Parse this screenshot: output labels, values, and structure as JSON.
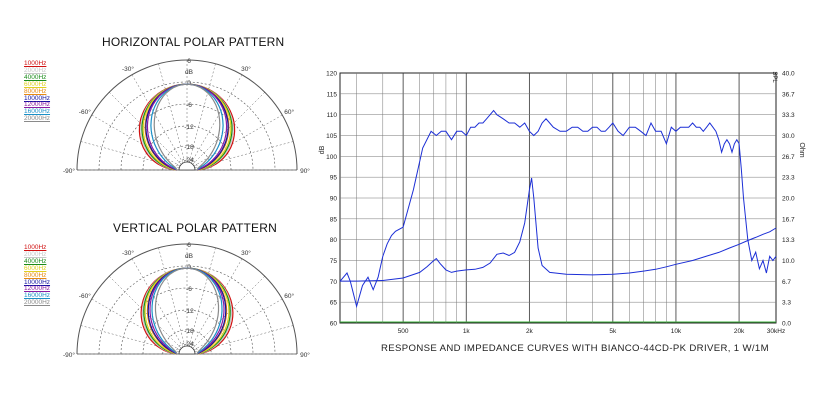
{
  "colors": {
    "1000Hz": "#d01010",
    "2000Hz": "#c8c8c8",
    "4000Hz": "#1a8c1a",
    "6000Hz": "#e0d020",
    "8000Hz": "#e88a10",
    "10000Hz": "#1010a0",
    "12000Hz": "#8a1aa0",
    "16000Hz": "#1a90c8",
    "20000Hz": "#8a8a8a",
    "spl": "#1c2fd6",
    "impedance": "#1c2fd6",
    "grid": "#444444",
    "marker": "#3cb43c"
  },
  "polar_horizontal": {
    "title": "HORIZONTAL POLAR PATTERN",
    "unit": "dB",
    "ring_labels": [
      "6",
      "0",
      "-6",
      "-12",
      "-18",
      "-24"
    ],
    "angle_labels": [
      "-30°",
      "30°",
      "-60°",
      "60°",
      "-90°",
      "90°"
    ],
    "legend": [
      "1000Hz",
      "2000Hz",
      "4000Hz",
      "6000Hz",
      "8000Hz",
      "10000Hz",
      "12000Hz",
      "16000Hz",
      "20000Hz"
    ]
  },
  "polar_vertical": {
    "title": "VERTICAL POLAR PATTERN",
    "unit": "dB",
    "ring_labels": [
      "6",
      "0",
      "-6",
      "-12",
      "-18",
      "-24"
    ],
    "angle_labels": [
      "-30°",
      "30°",
      "-60°",
      "60°",
      "-90°",
      "90°"
    ],
    "legend": [
      "1000Hz",
      "2000Hz",
      "4000Hz",
      "6000Hz",
      "8000Hz",
      "10000Hz",
      "12000Hz",
      "16000Hz",
      "20000Hz"
    ]
  },
  "caption": "RESPONSE AND IMPEDANCE CURVES WITH BIANCO-44CD-PK DRIVER, 1 W/1M",
  "chart_data": [
    {
      "type": "line",
      "xscale": "log",
      "xlim": [
        250,
        30000
      ],
      "ylim": [
        60,
        120
      ],
      "y2lim": [
        0,
        40
      ],
      "grid": true,
      "ylabel": "dB",
      "y2label": "Ohm",
      "y2_corner_label": "SPL",
      "x_ticks": [
        {
          "v": 500,
          "t": "500"
        },
        {
          "v": 1000,
          "t": "1k"
        },
        {
          "v": 2000,
          "t": "2k"
        },
        {
          "v": 5000,
          "t": "5k"
        },
        {
          "v": 10000,
          "t": "10k"
        },
        {
          "v": 20000,
          "t": "20k"
        },
        {
          "v": 30000,
          "t": "30kHz"
        }
      ],
      "y_ticks": [
        "60",
        "65",
        "70",
        "75",
        "80",
        "85",
        "90",
        "95",
        "100",
        "105",
        "110",
        "115",
        "120"
      ],
      "y2_ticks": [
        "0.0",
        "3.3",
        "6.7",
        "10.0",
        "13.3",
        "16.7",
        "20.0",
        "23.3",
        "26.7",
        "30.0",
        "33.3",
        "36.7",
        "40.0"
      ],
      "series": [
        {
          "axis": "left",
          "x": [
            250,
            270,
            280,
            300,
            320,
            340,
            360,
            380,
            400,
            420,
            440,
            460,
            500,
            560,
            620,
            680,
            720,
            760,
            800,
            850,
            900,
            950,
            1000,
            1050,
            1100,
            1150,
            1200,
            1250,
            1300,
            1350,
            1400,
            1500,
            1600,
            1700,
            1800,
            1900,
            2000,
            2100,
            2200,
            2300,
            2400,
            2500,
            2600,
            2800,
            3000,
            3200,
            3400,
            3600,
            3800,
            4000,
            4200,
            4400,
            4600,
            4800,
            5000,
            5300,
            5600,
            6000,
            6400,
            6800,
            7200,
            7600,
            8000,
            8500,
            9000,
            9500,
            10000,
            10500,
            11000,
            11500,
            12000,
            12500,
            13000,
            13500,
            14000,
            14500,
            15000,
            15500,
            16000,
            16500,
            17000,
            17500,
            18000,
            18500,
            19000,
            19500,
            20000,
            20500,
            21000,
            22000,
            23000,
            24000,
            25000,
            26000,
            27000,
            28000,
            29000,
            30000
          ],
          "y": [
            70,
            72,
            70,
            64,
            69,
            71,
            68,
            71,
            76,
            79,
            81,
            82,
            83,
            92,
            102,
            106,
            105,
            106,
            106,
            104,
            106,
            106,
            105,
            107,
            107,
            108,
            108,
            109,
            110,
            111,
            110,
            109,
            108,
            108,
            107,
            108,
            106,
            105,
            106,
            108,
            109,
            108,
            107,
            106,
            106,
            107,
            107,
            106,
            106,
            107,
            107,
            106,
            106,
            107,
            108,
            106,
            105,
            107,
            107,
            106,
            105,
            108,
            106,
            106,
            103,
            107,
            106,
            107,
            107,
            107,
            108,
            107,
            107,
            106,
            107,
            108,
            107,
            106,
            104,
            101,
            103,
            104,
            103,
            101,
            103,
            104,
            103,
            97,
            90,
            80,
            75,
            77,
            73,
            75,
            72,
            76,
            75,
            76
          ]
        },
        {
          "axis": "right",
          "x": [
            250,
            300,
            400,
            500,
            600,
            650,
            700,
            720,
            750,
            800,
            850,
            900,
            1000,
            1100,
            1200,
            1300,
            1400,
            1500,
            1600,
            1700,
            1800,
            1900,
            2000,
            2050,
            2100,
            2200,
            2300,
            2500,
            3000,
            4000,
            5000,
            6000,
            7000,
            8000,
            9000,
            10000,
            12000,
            14000,
            16000,
            18000,
            20000,
            22000,
            24000,
            26000,
            28000,
            30000
          ],
          "y": [
            6.7,
            6.7,
            6.8,
            7.2,
            8.1,
            9.0,
            10.0,
            10.3,
            9.5,
            8.5,
            8.1,
            8.3,
            8.5,
            8.6,
            8.9,
            9.6,
            11.0,
            11.2,
            10.8,
            11.3,
            13.0,
            16.0,
            21.3,
            23.2,
            20.0,
            12.0,
            9.2,
            8.1,
            7.8,
            7.7,
            7.8,
            8.0,
            8.3,
            8.6,
            9.0,
            9.4,
            10.0,
            10.7,
            11.3,
            12.0,
            12.6,
            13.2,
            13.7,
            14.2,
            14.6,
            15.2
          ]
        }
      ]
    }
  ]
}
